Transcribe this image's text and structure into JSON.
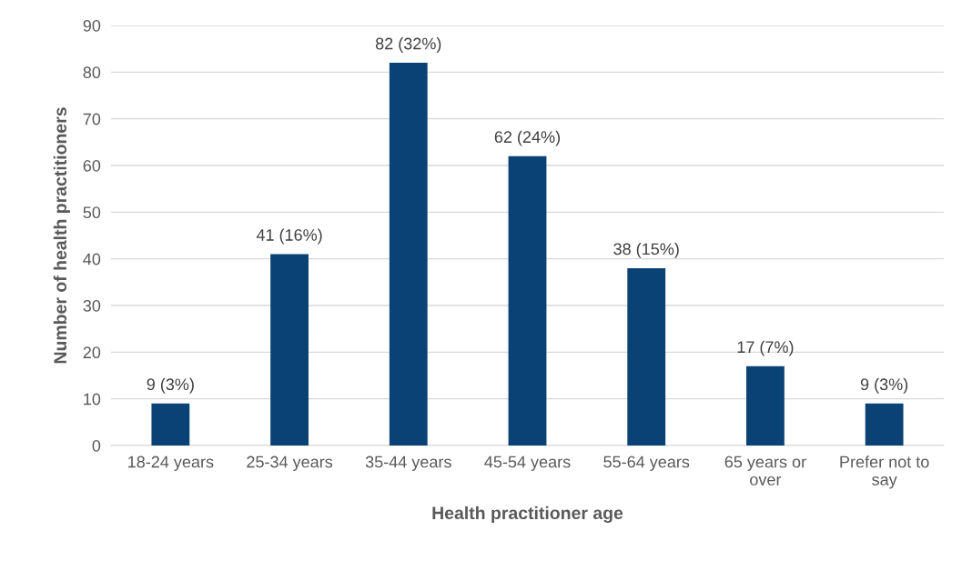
{
  "chart_data": {
    "type": "bar",
    "xlabel": "Health practitioner age",
    "ylabel": "Number of health practitioners",
    "categories": [
      "18-24 years",
      "25-34 years",
      "35-44 years",
      "45-54 years",
      "55-64 years",
      "65 years or\nover",
      "Prefer not to\nsay"
    ],
    "values": [
      9,
      41,
      82,
      62,
      38,
      17,
      9
    ],
    "value_labels": [
      "9 (3%)",
      "41 (16%)",
      "82 (32%)",
      "62 (24%)",
      "38 (15%)",
      "17 (7%)",
      "9 (3%)"
    ],
    "color": "#0b4275",
    "ylim": [
      0,
      90
    ],
    "yticks": [
      0,
      10,
      20,
      30,
      40,
      50,
      60,
      70,
      80,
      90
    ],
    "grid": "y"
  }
}
